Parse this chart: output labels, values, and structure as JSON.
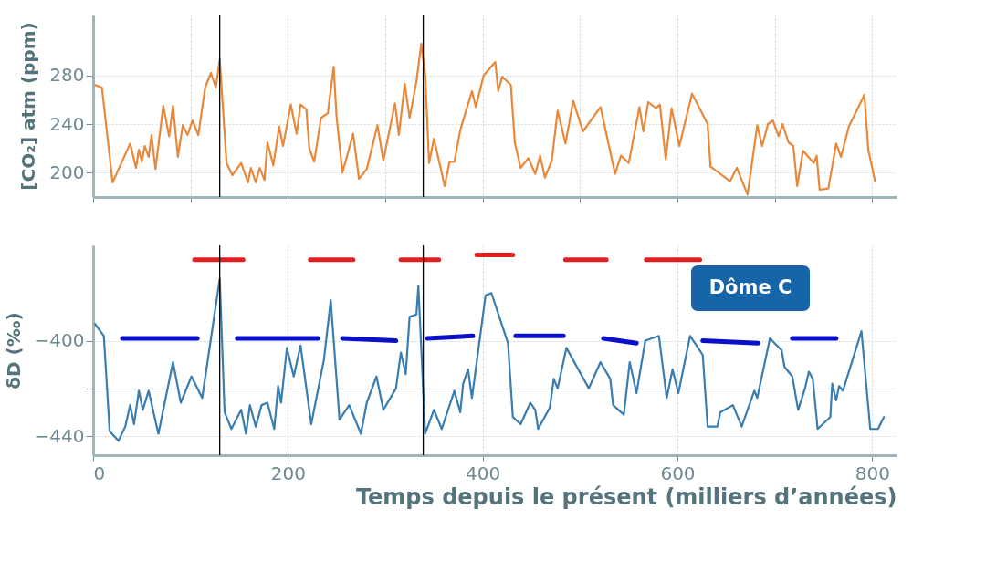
{
  "chart_data": [
    {
      "type": "line",
      "ylabel": "[CO₂] atm (ppm)",
      "xlim": [
        0,
        825
      ],
      "xticks": [
        0,
        100,
        200,
        300,
        400,
        500,
        600,
        700,
        800
      ],
      "ylim": [
        180,
        330
      ],
      "yticks": [
        200,
        240,
        280
      ],
      "grid": true,
      "tick_labels": "y",
      "ref_lines": [
        {
          "axis": "x",
          "value": 130,
          "color": "#000000"
        },
        {
          "axis": "x",
          "value": 339,
          "color": "#000000"
        }
      ],
      "series": [
        {
          "color": "#e8883a",
          "x": [
            2,
            9,
            20,
            38,
            44,
            47,
            50,
            53,
            57,
            60,
            64,
            72,
            78,
            82,
            87,
            92,
            97,
            102,
            108,
            115,
            121,
            126,
            130,
            137,
            143,
            152,
            159,
            162,
            167,
            171,
            176,
            179,
            185,
            191,
            195,
            203,
            209,
            213,
            219,
            222,
            227,
            234,
            241,
            247,
            250,
            256,
            267,
            273,
            281,
            292,
            298,
            310,
            314,
            320,
            325,
            332,
            337,
            341,
            345,
            350,
            361,
            366,
            371,
            377,
            389,
            393,
            401,
            413,
            416,
            420,
            429,
            433,
            439,
            447,
            454,
            459,
            464,
            471,
            477,
            485,
            493,
            503,
            521,
            536,
            542,
            550,
            561,
            565,
            570,
            578,
            582,
            588,
            594,
            602,
            615,
            631,
            634,
            654,
            661,
            672,
            682,
            687,
            693,
            698,
            704,
            708,
            714,
            719,
            723,
            729,
            740,
            743,
            746,
            755,
            763,
            768,
            776,
            792,
            796,
            803
          ],
          "values": [
            272,
            270,
            192,
            224,
            204,
            219,
            209,
            222,
            213,
            231,
            203,
            255,
            230,
            255,
            213,
            239,
            231,
            243,
            231,
            270,
            282,
            270,
            293,
            208,
            198,
            208,
            192,
            204,
            192,
            204,
            194,
            225,
            206,
            238,
            222,
            256,
            232,
            256,
            252,
            220,
            209,
            245,
            249,
            287,
            246,
            200,
            232,
            195,
            203,
            239,
            210,
            257,
            231,
            273,
            245,
            275,
            306,
            280,
            208,
            228,
            189,
            209,
            209,
            235,
            267,
            254,
            280,
            291,
            267,
            279,
            272,
            225,
            204,
            212,
            199,
            214,
            196,
            210,
            251,
            224,
            259,
            234,
            254,
            199,
            214,
            208,
            254,
            234,
            258,
            253,
            256,
            211,
            253,
            222,
            265,
            240,
            205,
            193,
            204,
            182,
            239,
            222,
            240,
            243,
            230,
            240,
            225,
            222,
            189,
            218,
            208,
            214,
            186,
            187,
            224,
            213,
            238,
            264,
            219,
            193
          ]
        }
      ]
    },
    {
      "type": "line",
      "ylabel": "δD (‰)",
      "xlabel": "Temps depuis le présent (milliers d’années)",
      "xlim": [
        0,
        825
      ],
      "xticks": [
        0,
        200,
        400,
        600,
        800
      ],
      "ylim": [
        -448,
        -360
      ],
      "yticks": [
        -440,
        {
          "value": -420,
          "label": null
        },
        -400
      ],
      "grid": true,
      "ref_lines": [
        {
          "axis": "x",
          "value": 130,
          "color": "#000000"
        },
        {
          "axis": "x",
          "value": 339,
          "color": "#000000"
        }
      ],
      "annotations": [
        "Dôme C"
      ],
      "series": [
        {
          "color": "#3a7db0",
          "x": [
            2,
            11,
            17,
            26,
            33,
            38,
            42,
            47,
            51,
            57,
            67,
            82,
            90,
            101,
            112,
            130,
            135,
            142,
            152,
            157,
            161,
            167,
            173,
            179,
            186,
            190,
            193,
            199,
            206,
            213,
            224,
            237,
            244,
            253,
            263,
            275,
            281,
            291,
            298,
            311,
            316,
            321,
            325,
            332,
            334,
            341,
            350,
            358,
            371,
            377,
            380,
            385,
            389,
            403,
            409,
            426,
            431,
            439,
            449,
            454,
            457,
            469,
            473,
            477,
            486,
            509,
            521,
            531,
            534,
            545,
            551,
            558,
            567,
            581,
            589,
            595,
            601,
            613,
            626,
            631,
            641,
            644,
            657,
            666,
            679,
            682,
            695,
            707,
            710,
            718,
            724,
            731,
            735,
            739,
            744,
            757,
            759,
            763,
            766,
            770,
            789,
            798,
            806,
            812
          ],
          "values": [
            -393,
            -398,
            -438,
            -442,
            -436,
            -427,
            -435,
            -421,
            -429,
            -421,
            -439,
            -409,
            -426,
            -415,
            -424,
            -374,
            -430,
            -437,
            -429,
            -439,
            -427,
            -436,
            -427,
            -426,
            -437,
            -419,
            -426,
            -403,
            -415,
            -402,
            -435,
            -408,
            -383,
            -433,
            -427,
            -439,
            -426,
            -415,
            -429,
            -420,
            -405,
            -414,
            -390,
            -389,
            -377,
            -439,
            -429,
            -437,
            -421,
            -430,
            -418,
            -412,
            -424,
            -381,
            -380,
            -401,
            -432,
            -435,
            -426,
            -429,
            -437,
            -428,
            -416,
            -420,
            -403,
            -420,
            -409,
            -416,
            -427,
            -431,
            -409,
            -422,
            -400,
            -398,
            -424,
            -412,
            -422,
            -398,
            -406,
            -436,
            -436,
            -430,
            -427,
            -436,
            -421,
            -424,
            -399,
            -404,
            -411,
            -415,
            -429,
            -420,
            -413,
            -416,
            -437,
            -432,
            -418,
            -425,
            -419,
            -421,
            -396,
            -437,
            -437,
            -432
          ]
        },
        {
          "color": "#e02020",
          "x": [
            104,
            154,
            155,
            223,
            267,
            268,
            316,
            355,
            356,
            394,
            431,
            432,
            485,
            527,
            528,
            568,
            623
          ],
          "values": [
            -366,
            -366,
            null,
            -366,
            -366,
            null,
            -366,
            -366,
            null,
            -364,
            -364,
            null,
            -366,
            -366,
            null,
            -366,
            -366
          ]
        },
        {
          "color": "#0a10c8",
          "x": [
            30,
            107,
            108,
            148,
            231,
            232,
            256,
            311,
            312,
            343,
            390,
            391,
            434,
            483,
            484,
            524,
            558,
            559,
            626,
            683,
            684,
            718,
            763
          ],
          "values": [
            -399,
            -399,
            null,
            -399,
            -399,
            null,
            -399,
            -400,
            null,
            -399,
            -398,
            null,
            -398,
            -398,
            null,
            -399,
            -401,
            null,
            -400,
            -401,
            null,
            -399,
            -399
          ]
        }
      ]
    }
  ]
}
